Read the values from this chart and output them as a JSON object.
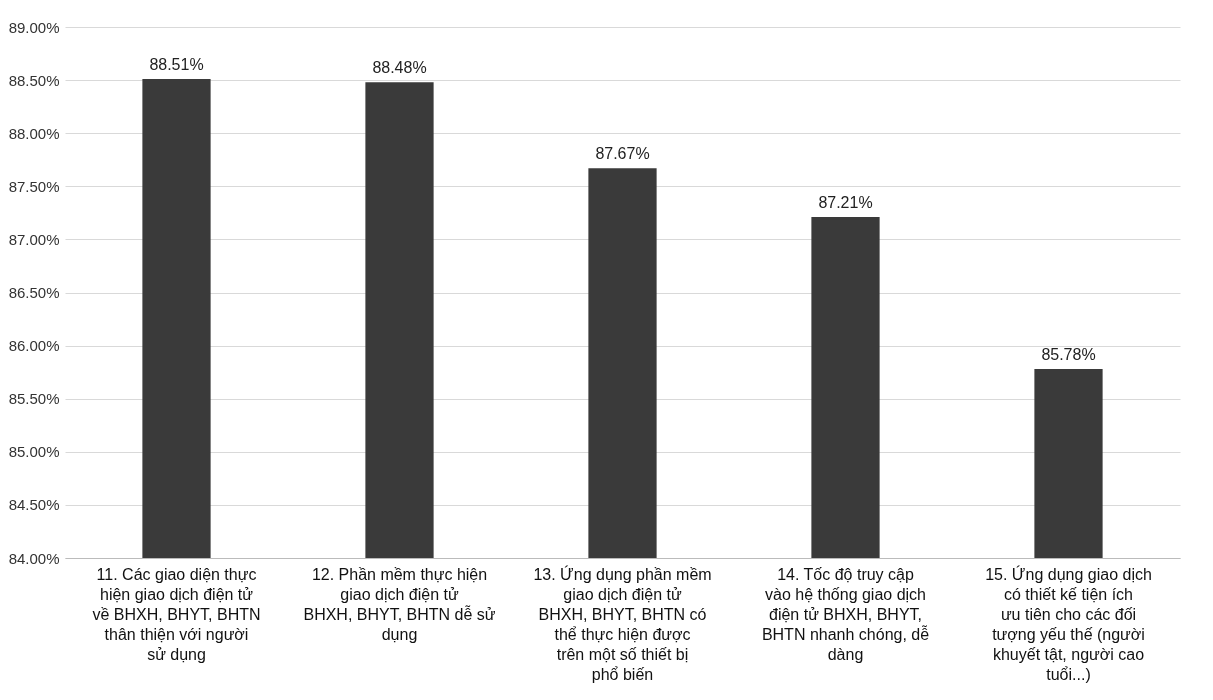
{
  "chart_data": {
    "type": "bar",
    "categories": [
      "11. Các giao diện thực hiện giao dịch điện tử về BHXH, BHYT, BHTN thân thiện với người sử dụng",
      "12. Phần mềm thực hiện giao dịch điện tử BHXH, BHYT, BHTN dễ sử dụng",
      "13. Ứng dụng phần mềm giao dịch điện tử BHXH, BHYT, BHTN có thể thực hiện được trên một số thiết bị phổ biến",
      "14. Tốc độ truy cập vào hệ thống giao dịch điện tử BHXH, BHYT, BHTN nhanh chóng, dễ dàng",
      "15. Ứng dụng giao dịch có thiết kế tiện ích ưu tiên cho các đối tượng yếu thế (người khuyết tật, người cao tuổi...)"
    ],
    "values": [
      88.51,
      88.48,
      87.67,
      87.21,
      85.78
    ],
    "value_labels": [
      "88.51%",
      "88.48%",
      "87.67%",
      "87.21%",
      "85.78%"
    ],
    "color": "#3a3a3a",
    "ylim": [
      84,
      89
    ],
    "yticks": [
      {
        "value": 84,
        "label": "84.00%"
      },
      {
        "value": 84.5,
        "label": "84.50%"
      },
      {
        "value": 85,
        "label": "85.00%"
      },
      {
        "value": 85.5,
        "label": "85.50%"
      },
      {
        "value": 86,
        "label": "86.00%"
      },
      {
        "value": 86.5,
        "label": "86.50%"
      },
      {
        "value": 87,
        "label": "87.00%"
      },
      {
        "value": 87.5,
        "label": "87.50%"
      },
      {
        "value": 88,
        "label": "88.00%"
      },
      {
        "value": 88.5,
        "label": "88.50%"
      },
      {
        "value": 89,
        "label": "89.00%"
      }
    ],
    "grid": true
  }
}
